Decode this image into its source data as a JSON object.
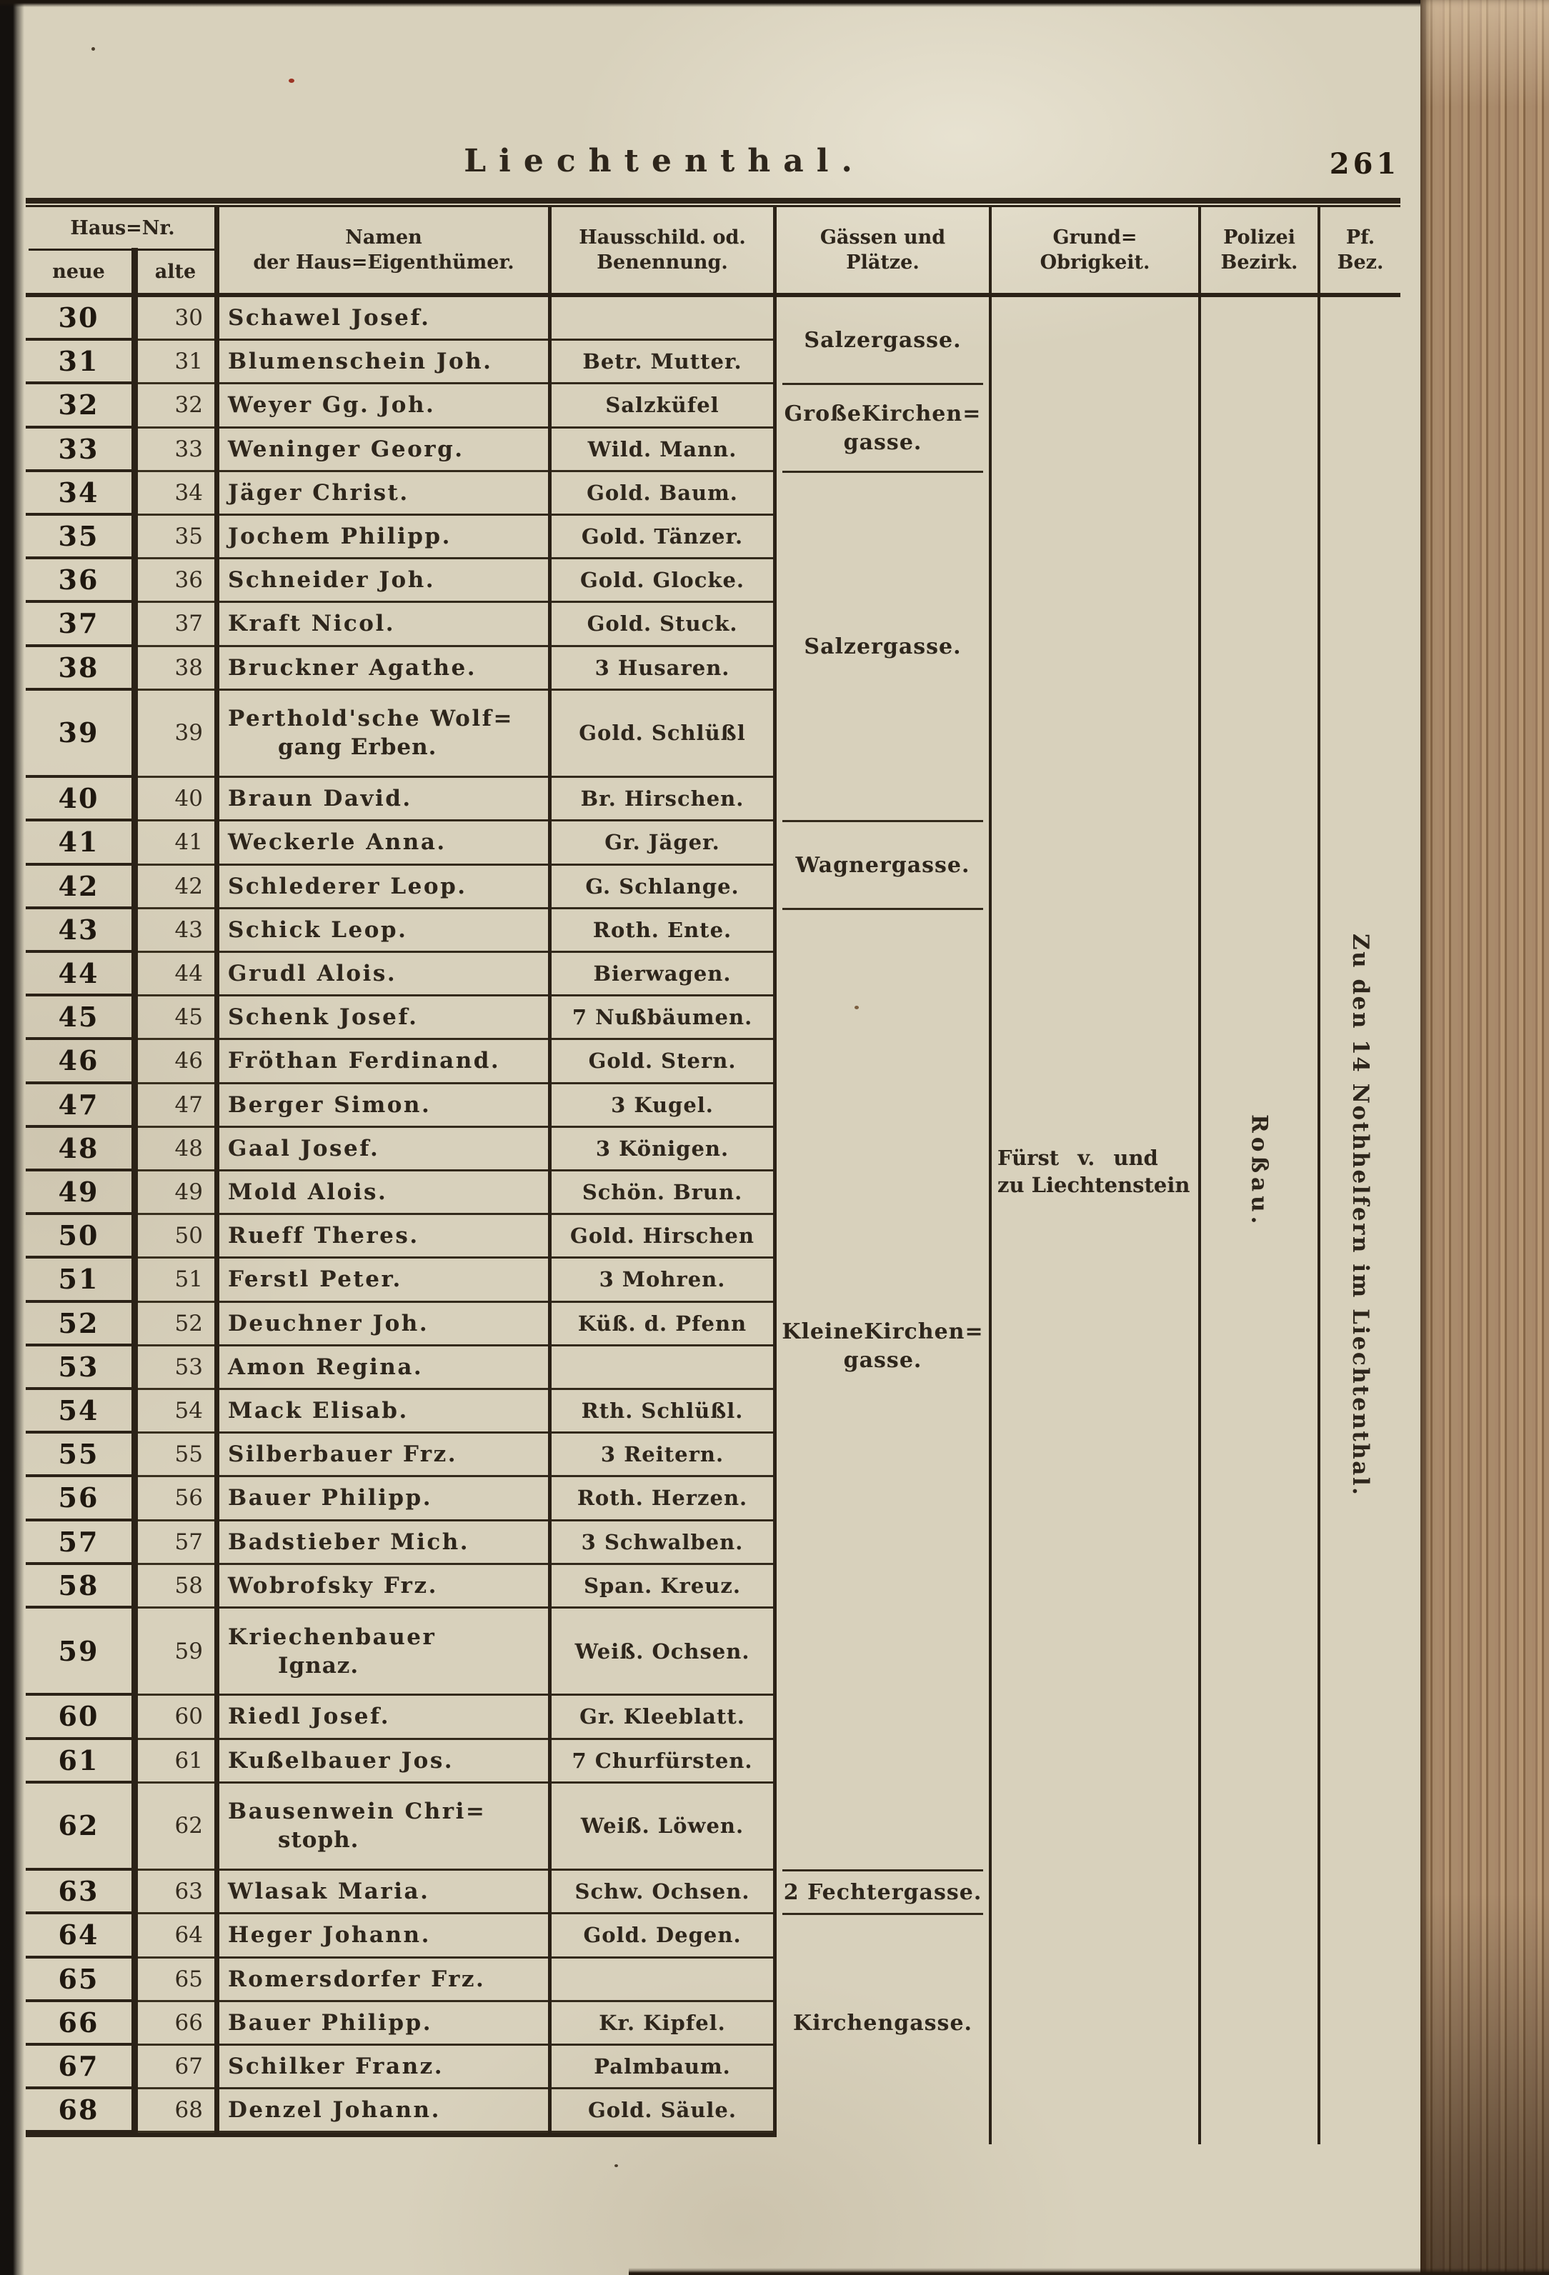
{
  "page": {
    "title": "Liechtenthal.",
    "page_number": "261"
  },
  "colors": {
    "paper": "#d8d1bc",
    "ink": "#2e261c",
    "rule": "#2b2217",
    "book_edge": "#a1815f",
    "scan_edge": "#14110e"
  },
  "header": {
    "hausnr": "Haus=Nr.",
    "neue": "neue",
    "alte": "alte",
    "namen": [
      "Namen",
      "der Haus=Eigenthümer."
    ],
    "schild": [
      "Hausschild. od.",
      "Benennung."
    ],
    "gassen": [
      "Gässen und",
      "Plätze."
    ],
    "grund": [
      "Grund=",
      "Obrigkeit."
    ],
    "polizei": [
      "Polizei",
      "Bezirk."
    ],
    "pf": [
      "Pf.",
      "Bez."
    ]
  },
  "rows": [
    {
      "neue": "30",
      "alte": "30",
      "name": "Schawel Josef.",
      "shield": ""
    },
    {
      "neue": "31",
      "alte": "31",
      "name": "Blumenschein Joh.",
      "shield": "Betr. Mutter."
    },
    {
      "neue": "32",
      "alte": "32",
      "name": "Weyer Gg. Joh.",
      "shield": "Salzküfel"
    },
    {
      "neue": "33",
      "alte": "33",
      "name": "Weninger Georg.",
      "shield": "Wild. Mann."
    },
    {
      "neue": "34",
      "alte": "34",
      "name": "Jäger Christ.",
      "shield": "Gold. Baum."
    },
    {
      "neue": "35",
      "alte": "35",
      "name": "Jochem Philipp.",
      "shield": "Gold. Tänzer."
    },
    {
      "neue": "36",
      "alte": "36",
      "name": "Schneider Joh.",
      "shield": "Gold. Glocke."
    },
    {
      "neue": "37",
      "alte": "37",
      "name": "Kraft Nicol.",
      "shield": "Gold. Stuck."
    },
    {
      "neue": "38",
      "alte": "38",
      "name": "Bruckner Agathe.",
      "shield": "3 Husaren."
    },
    {
      "neue": "39",
      "alte": "39",
      "name": "Perthold'sche Wolf=",
      "name2": "gang Erben.",
      "shield": "Gold. Schlüßl"
    },
    {
      "neue": "40",
      "alte": "40",
      "name": "Braun David.",
      "shield": "Br. Hirschen."
    },
    {
      "neue": "41",
      "alte": "41",
      "name": "Weckerle Anna.",
      "shield": "Gr. Jäger."
    },
    {
      "neue": "42",
      "alte": "42",
      "name": "Schlederer Leop.",
      "shield": "G. Schlange."
    },
    {
      "neue": "43",
      "alte": "43",
      "name": "Schick Leop.",
      "shield": "Roth. Ente."
    },
    {
      "neue": "44",
      "alte": "44",
      "name": "Grudl Alois.",
      "shield": "Bierwagen."
    },
    {
      "neue": "45",
      "alte": "45",
      "name": "Schenk Josef.",
      "shield": "7 Nußbäumen."
    },
    {
      "neue": "46",
      "alte": "46",
      "name": "Fröthan Ferdinand.",
      "shield": "Gold. Stern."
    },
    {
      "neue": "47",
      "alte": "47",
      "name": "Berger Simon.",
      "shield": "3 Kugel."
    },
    {
      "neue": "48",
      "alte": "48",
      "name": "Gaal Josef.",
      "shield": "3 Königen."
    },
    {
      "neue": "49",
      "alte": "49",
      "name": "Mold Alois.",
      "shield": "Schön. Brun."
    },
    {
      "neue": "50",
      "alte": "50",
      "name": "Rueff Theres.",
      "shield": "Gold. Hirschen"
    },
    {
      "neue": "51",
      "alte": "51",
      "name": "Ferstl Peter.",
      "shield": "3 Mohren."
    },
    {
      "neue": "52",
      "alte": "52",
      "name": "Deuchner Joh.",
      "shield": "Küß. d. Pfenn"
    },
    {
      "neue": "53",
      "alte": "53",
      "name": "Amon Regina.",
      "shield": ""
    },
    {
      "neue": "54",
      "alte": "54",
      "name": "Mack Elisab.",
      "shield": "Rth. Schlüßl."
    },
    {
      "neue": "55",
      "alte": "55",
      "name": "Silberbauer Frz.",
      "shield": "3 Reitern."
    },
    {
      "neue": "56",
      "alte": "56",
      "name": "Bauer Philipp.",
      "shield": "Roth. Herzen."
    },
    {
      "neue": "57",
      "alte": "57",
      "name": "Badstieber Mich.",
      "shield": "3 Schwalben."
    },
    {
      "neue": "58",
      "alte": "58",
      "name": "Wobrofsky Frz.",
      "shield": "Span. Kreuz."
    },
    {
      "neue": "59",
      "alte": "59",
      "name": "Kriechenbauer",
      "name2": "Ignaz.",
      "shield": "Weiß. Ochsen."
    },
    {
      "neue": "60",
      "alte": "60",
      "name": "Riedl Josef.",
      "shield": "Gr. Kleeblatt."
    },
    {
      "neue": "61",
      "alte": "61",
      "name": "Kußelbauer Jos.",
      "shield": "7 Churfürsten."
    },
    {
      "neue": "62",
      "alte": "62",
      "name": "Bausenwein Chri=",
      "name2": "stoph.",
      "shield": "Weiß. Löwen."
    },
    {
      "neue": "63",
      "alte": "63",
      "name": "Wlasak Maria.",
      "shield": "Schw. Ochsen."
    },
    {
      "neue": "64",
      "alte": "64",
      "name": "Heger Johann.",
      "shield": "Gold. Degen."
    },
    {
      "neue": "65",
      "alte": "65",
      "name": "Romersdorfer Frz.",
      "shield": ""
    },
    {
      "neue": "66",
      "alte": "66",
      "name": "Bauer Philipp.",
      "shield": "Kr. Kipfel."
    },
    {
      "neue": "67",
      "alte": "67",
      "name": "Schilker Franz.",
      "shield": "Palmbaum."
    },
    {
      "neue": "68",
      "alte": "68",
      "name": "Denzel Johann.",
      "shield": "Gold. Säule."
    }
  ],
  "streets": [
    {
      "text": "Salzergasse.",
      "row_start": 30,
      "row_end": 31,
      "divider_below": true
    },
    {
      "text": "GroßeKirchen=",
      "text2": "gasse.",
      "row_start": 32,
      "row_end": 33,
      "divider_below": true
    },
    {
      "text": "Salzergasse.",
      "row_start": 34,
      "row_end": 40,
      "divider_below": true
    },
    {
      "text": "Wagnergasse.",
      "row_start": 41,
      "row_end": 42,
      "divider_below": true
    },
    {
      "text": "KleineKirchen=",
      "text2": "gasse.",
      "row_start": 52,
      "row_end": 53
    },
    {
      "text": "2 Fechtergasse.",
      "row_start": 63,
      "row_end": 63,
      "divider_above": true,
      "divider_below": true
    },
    {
      "text": "Kirchengasse.",
      "row_start": 66,
      "row_end": 66
    }
  ],
  "authority": {
    "line1": "Fürst v. und",
    "line2": "zu Liechtenstein",
    "row_start": 48,
    "row_end": 49
  },
  "police_district": {
    "text": "Roßau.",
    "row_start": 46,
    "row_end": 51
  },
  "parish_district": {
    "text": "Zu den 14 Nothhelfern im Liechtenthal.",
    "row_start": 42,
    "row_end": 57
  }
}
